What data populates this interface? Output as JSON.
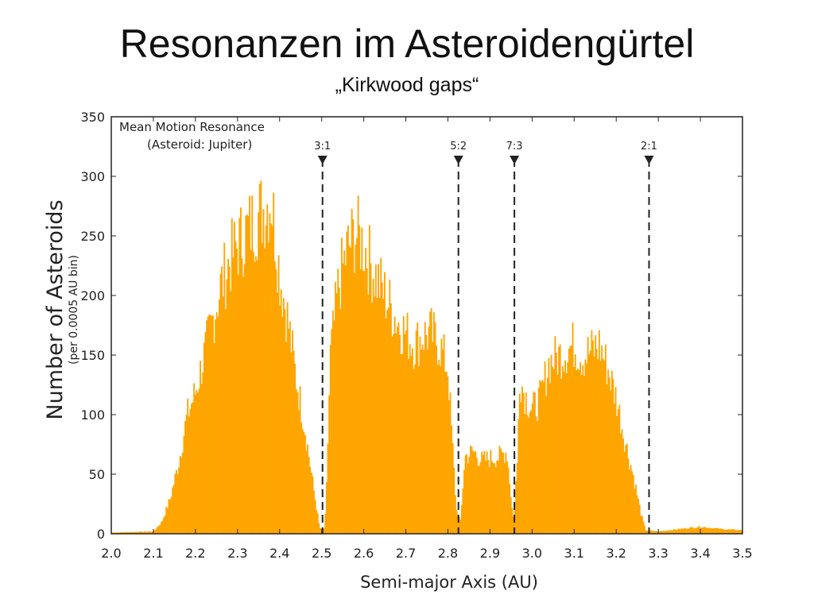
{
  "slide": {
    "title": "Resonanzen im Asteroidengürtel",
    "subtitle": "„Kirkwood gaps“"
  },
  "chart_data": {
    "type": "bar",
    "xlabel": "Semi-major Axis (AU)",
    "ylabel": "Number of Asteroids",
    "ylabel_sub": "(per 0.0005 AU bin)",
    "xlim": [
      2.0,
      3.5
    ],
    "ylim": [
      0,
      350
    ],
    "x_ticks": [
      2.0,
      2.1,
      2.2,
      2.3,
      2.4,
      2.5,
      2.6,
      2.7,
      2.8,
      2.9,
      3.0,
      3.1,
      3.2,
      3.3,
      3.4,
      3.5
    ],
    "x_tick_labels": [
      "2.0",
      "2.1",
      "2.2",
      "2.3",
      "2.4",
      "2.5",
      "2.6",
      "2.7",
      "2.8",
      "2.9",
      "3.0",
      "3.1",
      "3.2",
      "3.3",
      "3.4",
      "3.5"
    ],
    "y_ticks": [
      0,
      50,
      100,
      150,
      200,
      250,
      300,
      350
    ],
    "y_tick_labels": [
      "0",
      "50",
      "100",
      "150",
      "200",
      "250",
      "300",
      "350"
    ],
    "annotation": [
      "Mean Motion Resonance",
      "(Asteroid: Jupiter)"
    ],
    "fill_color": "#FFA500",
    "resonances": [
      {
        "label": "3:1",
        "x": 2.502
      },
      {
        "label": "5:2",
        "x": 2.825
      },
      {
        "label": "7:3",
        "x": 2.958
      },
      {
        "label": "2:1",
        "x": 3.278
      }
    ],
    "distribution_envelope": [
      [
        2.0,
        1
      ],
      [
        2.1,
        2
      ],
      [
        2.12,
        10
      ],
      [
        2.14,
        30
      ],
      [
        2.16,
        60
      ],
      [
        2.18,
        100
      ],
      [
        2.2,
        120
      ],
      [
        2.22,
        150
      ],
      [
        2.24,
        180
      ],
      [
        2.26,
        210
      ],
      [
        2.28,
        230
      ],
      [
        2.3,
        245
      ],
      [
        2.32,
        255
      ],
      [
        2.34,
        265
      ],
      [
        2.36,
        275
      ],
      [
        2.38,
        285
      ],
      [
        2.4,
        220
      ],
      [
        2.42,
        180
      ],
      [
        2.44,
        130
      ],
      [
        2.46,
        90
      ],
      [
        2.48,
        40
      ],
      [
        2.495,
        5
      ],
      [
        2.505,
        3
      ],
      [
        2.51,
        20
      ],
      [
        2.52,
        150
      ],
      [
        2.54,
        210
      ],
      [
        2.56,
        240
      ],
      [
        2.58,
        255
      ],
      [
        2.6,
        245
      ],
      [
        2.62,
        225
      ],
      [
        2.64,
        210
      ],
      [
        2.66,
        195
      ],
      [
        2.68,
        180
      ],
      [
        2.7,
        170
      ],
      [
        2.72,
        160
      ],
      [
        2.74,
        168
      ],
      [
        2.76,
        170
      ],
      [
        2.78,
        160
      ],
      [
        2.8,
        140
      ],
      [
        2.82,
        20
      ],
      [
        2.83,
        10
      ],
      [
        2.84,
        65
      ],
      [
        2.86,
        70
      ],
      [
        2.88,
        62
      ],
      [
        2.9,
        64
      ],
      [
        2.92,
        65
      ],
      [
        2.94,
        70
      ],
      [
        2.955,
        12
      ],
      [
        2.965,
        60
      ],
      [
        2.97,
        135
      ],
      [
        2.98,
        120
      ],
      [
        3.0,
        105
      ],
      [
        3.02,
        115
      ],
      [
        3.04,
        145
      ],
      [
        3.06,
        150
      ],
      [
        3.08,
        155
      ],
      [
        3.1,
        160
      ],
      [
        3.12,
        150
      ],
      [
        3.14,
        155
      ],
      [
        3.16,
        160
      ],
      [
        3.18,
        140
      ],
      [
        3.2,
        115
      ],
      [
        3.22,
        80
      ],
      [
        3.24,
        50
      ],
      [
        3.26,
        15
      ],
      [
        3.27,
        3
      ],
      [
        3.3,
        2
      ],
      [
        3.35,
        4
      ],
      [
        3.4,
        6
      ],
      [
        3.45,
        4
      ],
      [
        3.5,
        3
      ]
    ]
  }
}
